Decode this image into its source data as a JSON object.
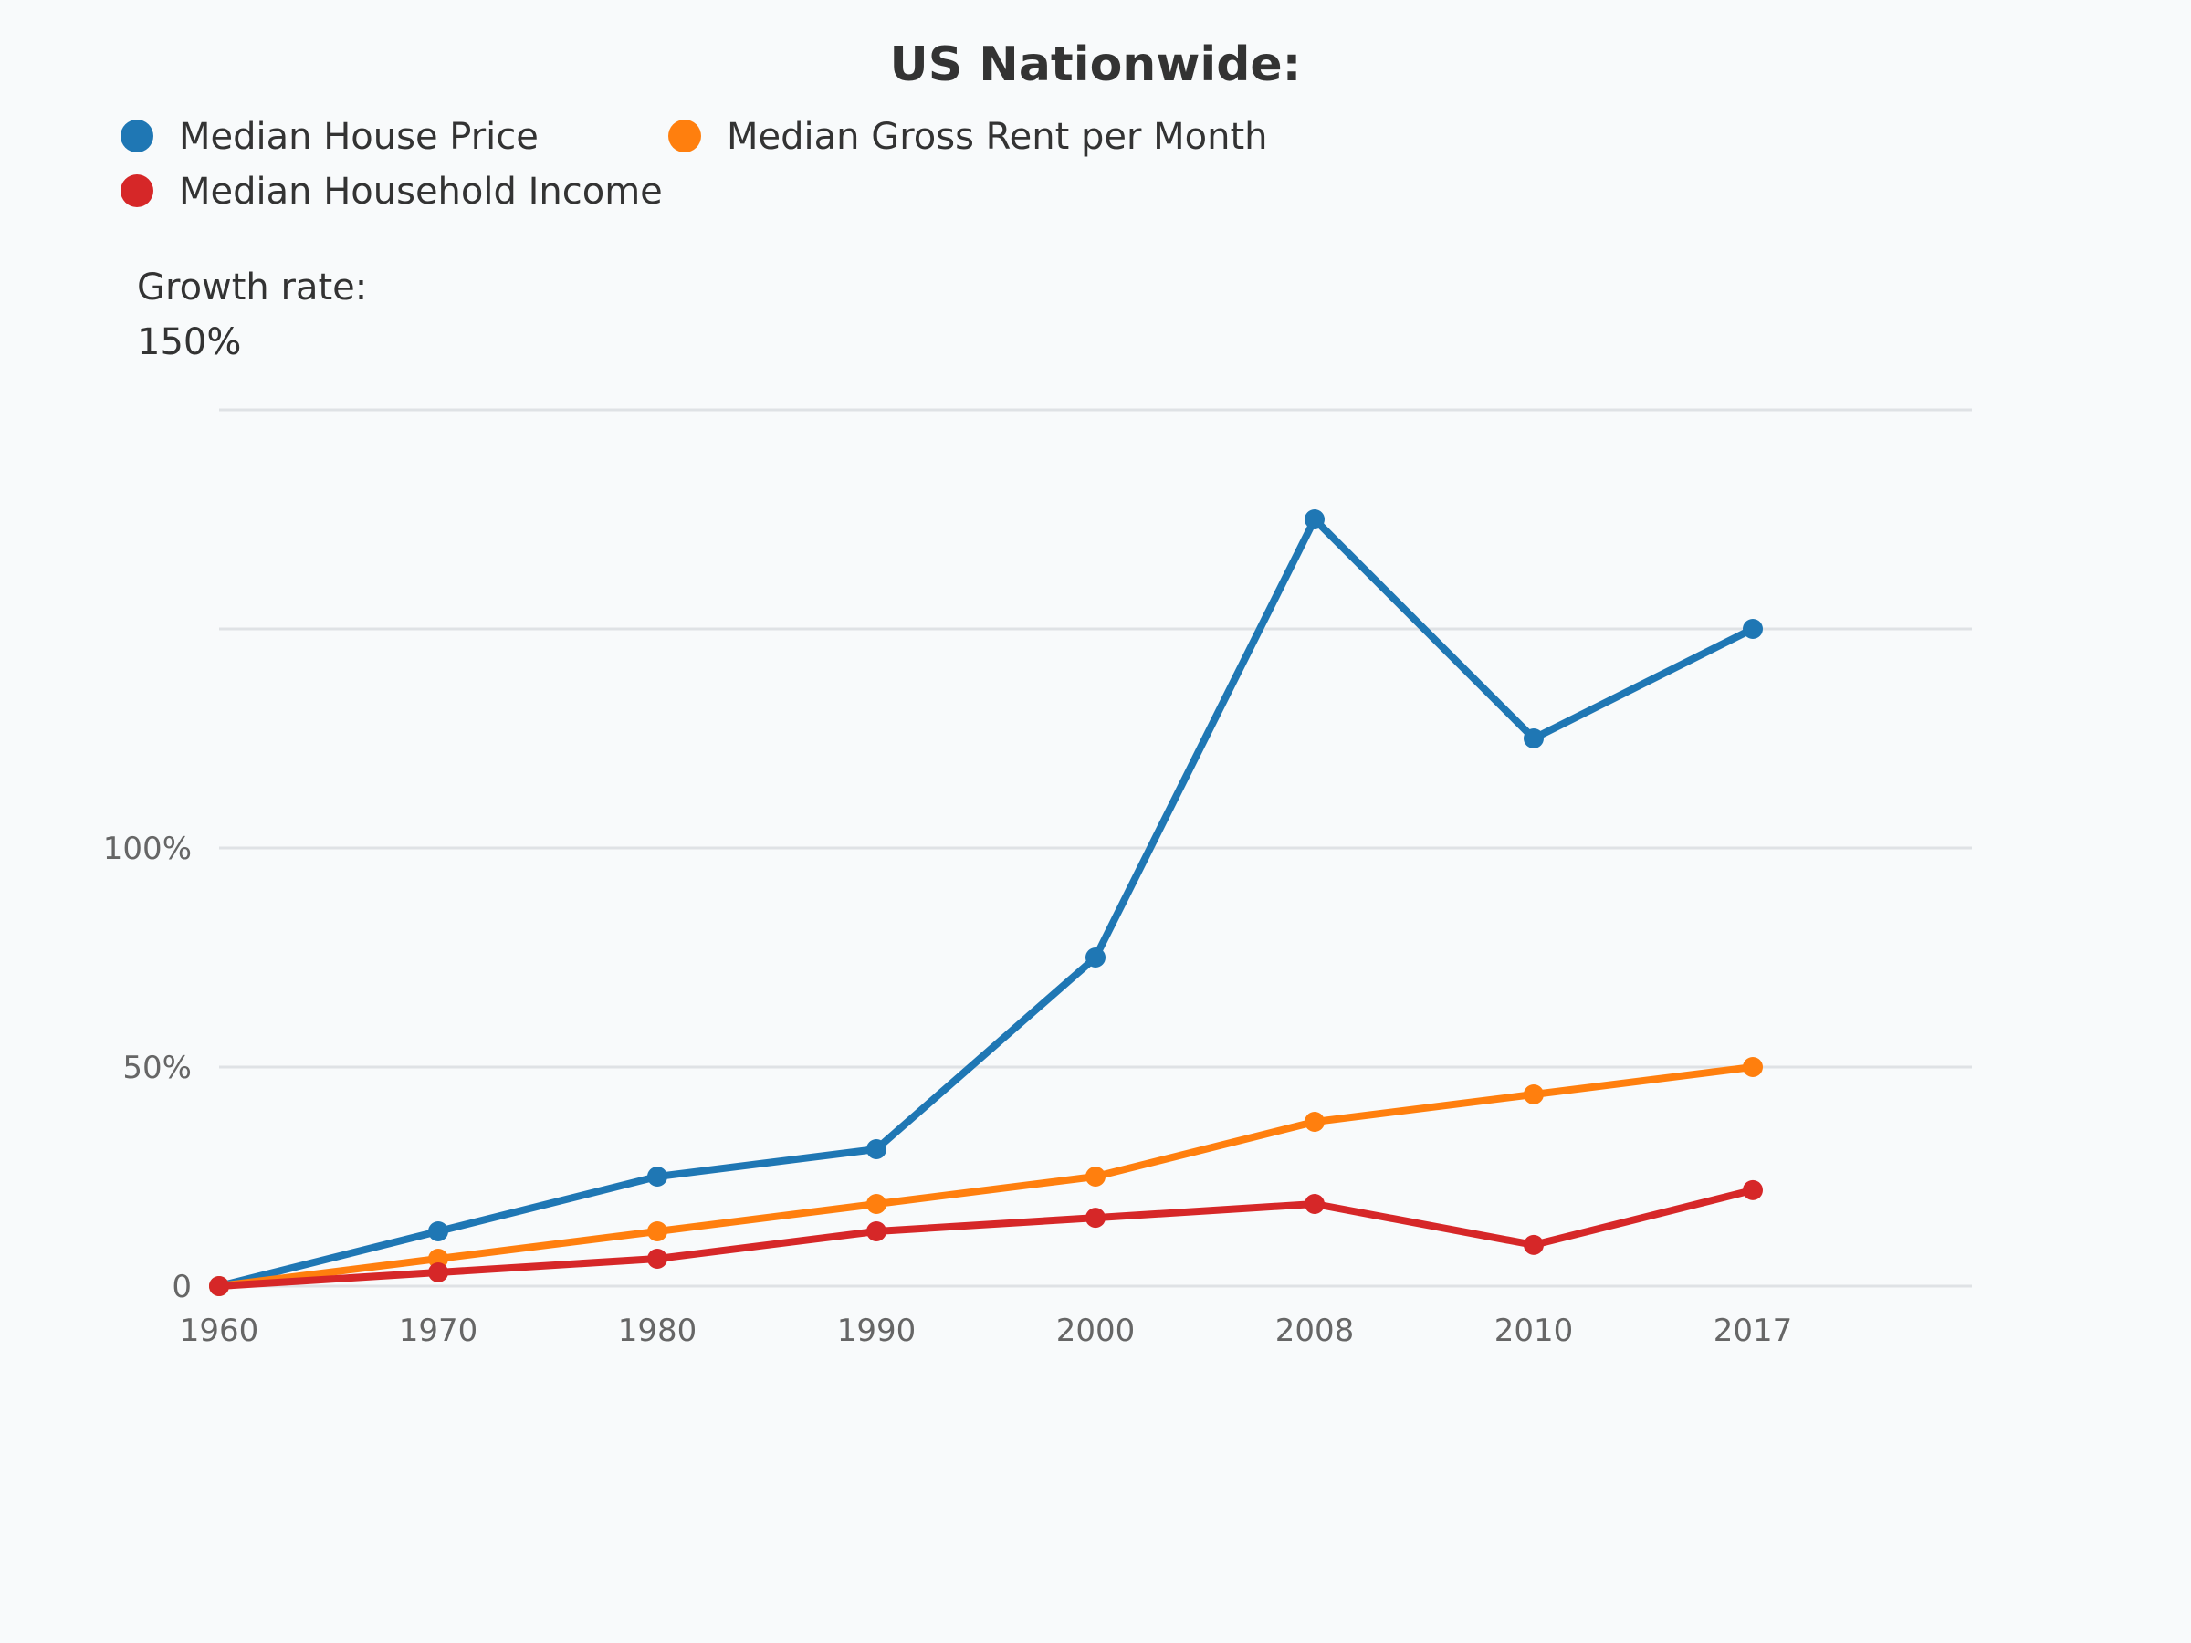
{
  "chart_data": {
    "type": "line",
    "title": "US Nationwide:",
    "xlabel": "",
    "ylabel_lines": [
      "Growth rate:",
      "150%"
    ],
    "categories": [
      "1960",
      "1970",
      "1980",
      "1990",
      "2000",
      "2008",
      "2010",
      "2017"
    ],
    "y_ticks": [
      {
        "value": 0,
        "label": "0"
      },
      {
        "value": 50,
        "label": "50%"
      },
      {
        "value": 100,
        "label": "100%"
      },
      {
        "value": 150,
        "label": ""
      },
      {
        "value": 200,
        "label": ""
      }
    ],
    "ylim": [
      0,
      200
    ],
    "grid": true,
    "legend_position": "top-left",
    "series": [
      {
        "name": "Median House Price",
        "color": "#1f77b4",
        "values": [
          0,
          12.5,
          25,
          31.25,
          75,
          175,
          125,
          150
        ]
      },
      {
        "name": "Median Gross Rent per Month",
        "color": "#ff7f0e",
        "values": [
          0,
          6.25,
          12.5,
          18.75,
          25,
          37.5,
          43.75,
          50
        ]
      },
      {
        "name": "Median Household Income",
        "color": "#d62728",
        "values": [
          0,
          3.125,
          6.25,
          12.5,
          15.6,
          18.75,
          9.4,
          21.9
        ]
      }
    ]
  }
}
